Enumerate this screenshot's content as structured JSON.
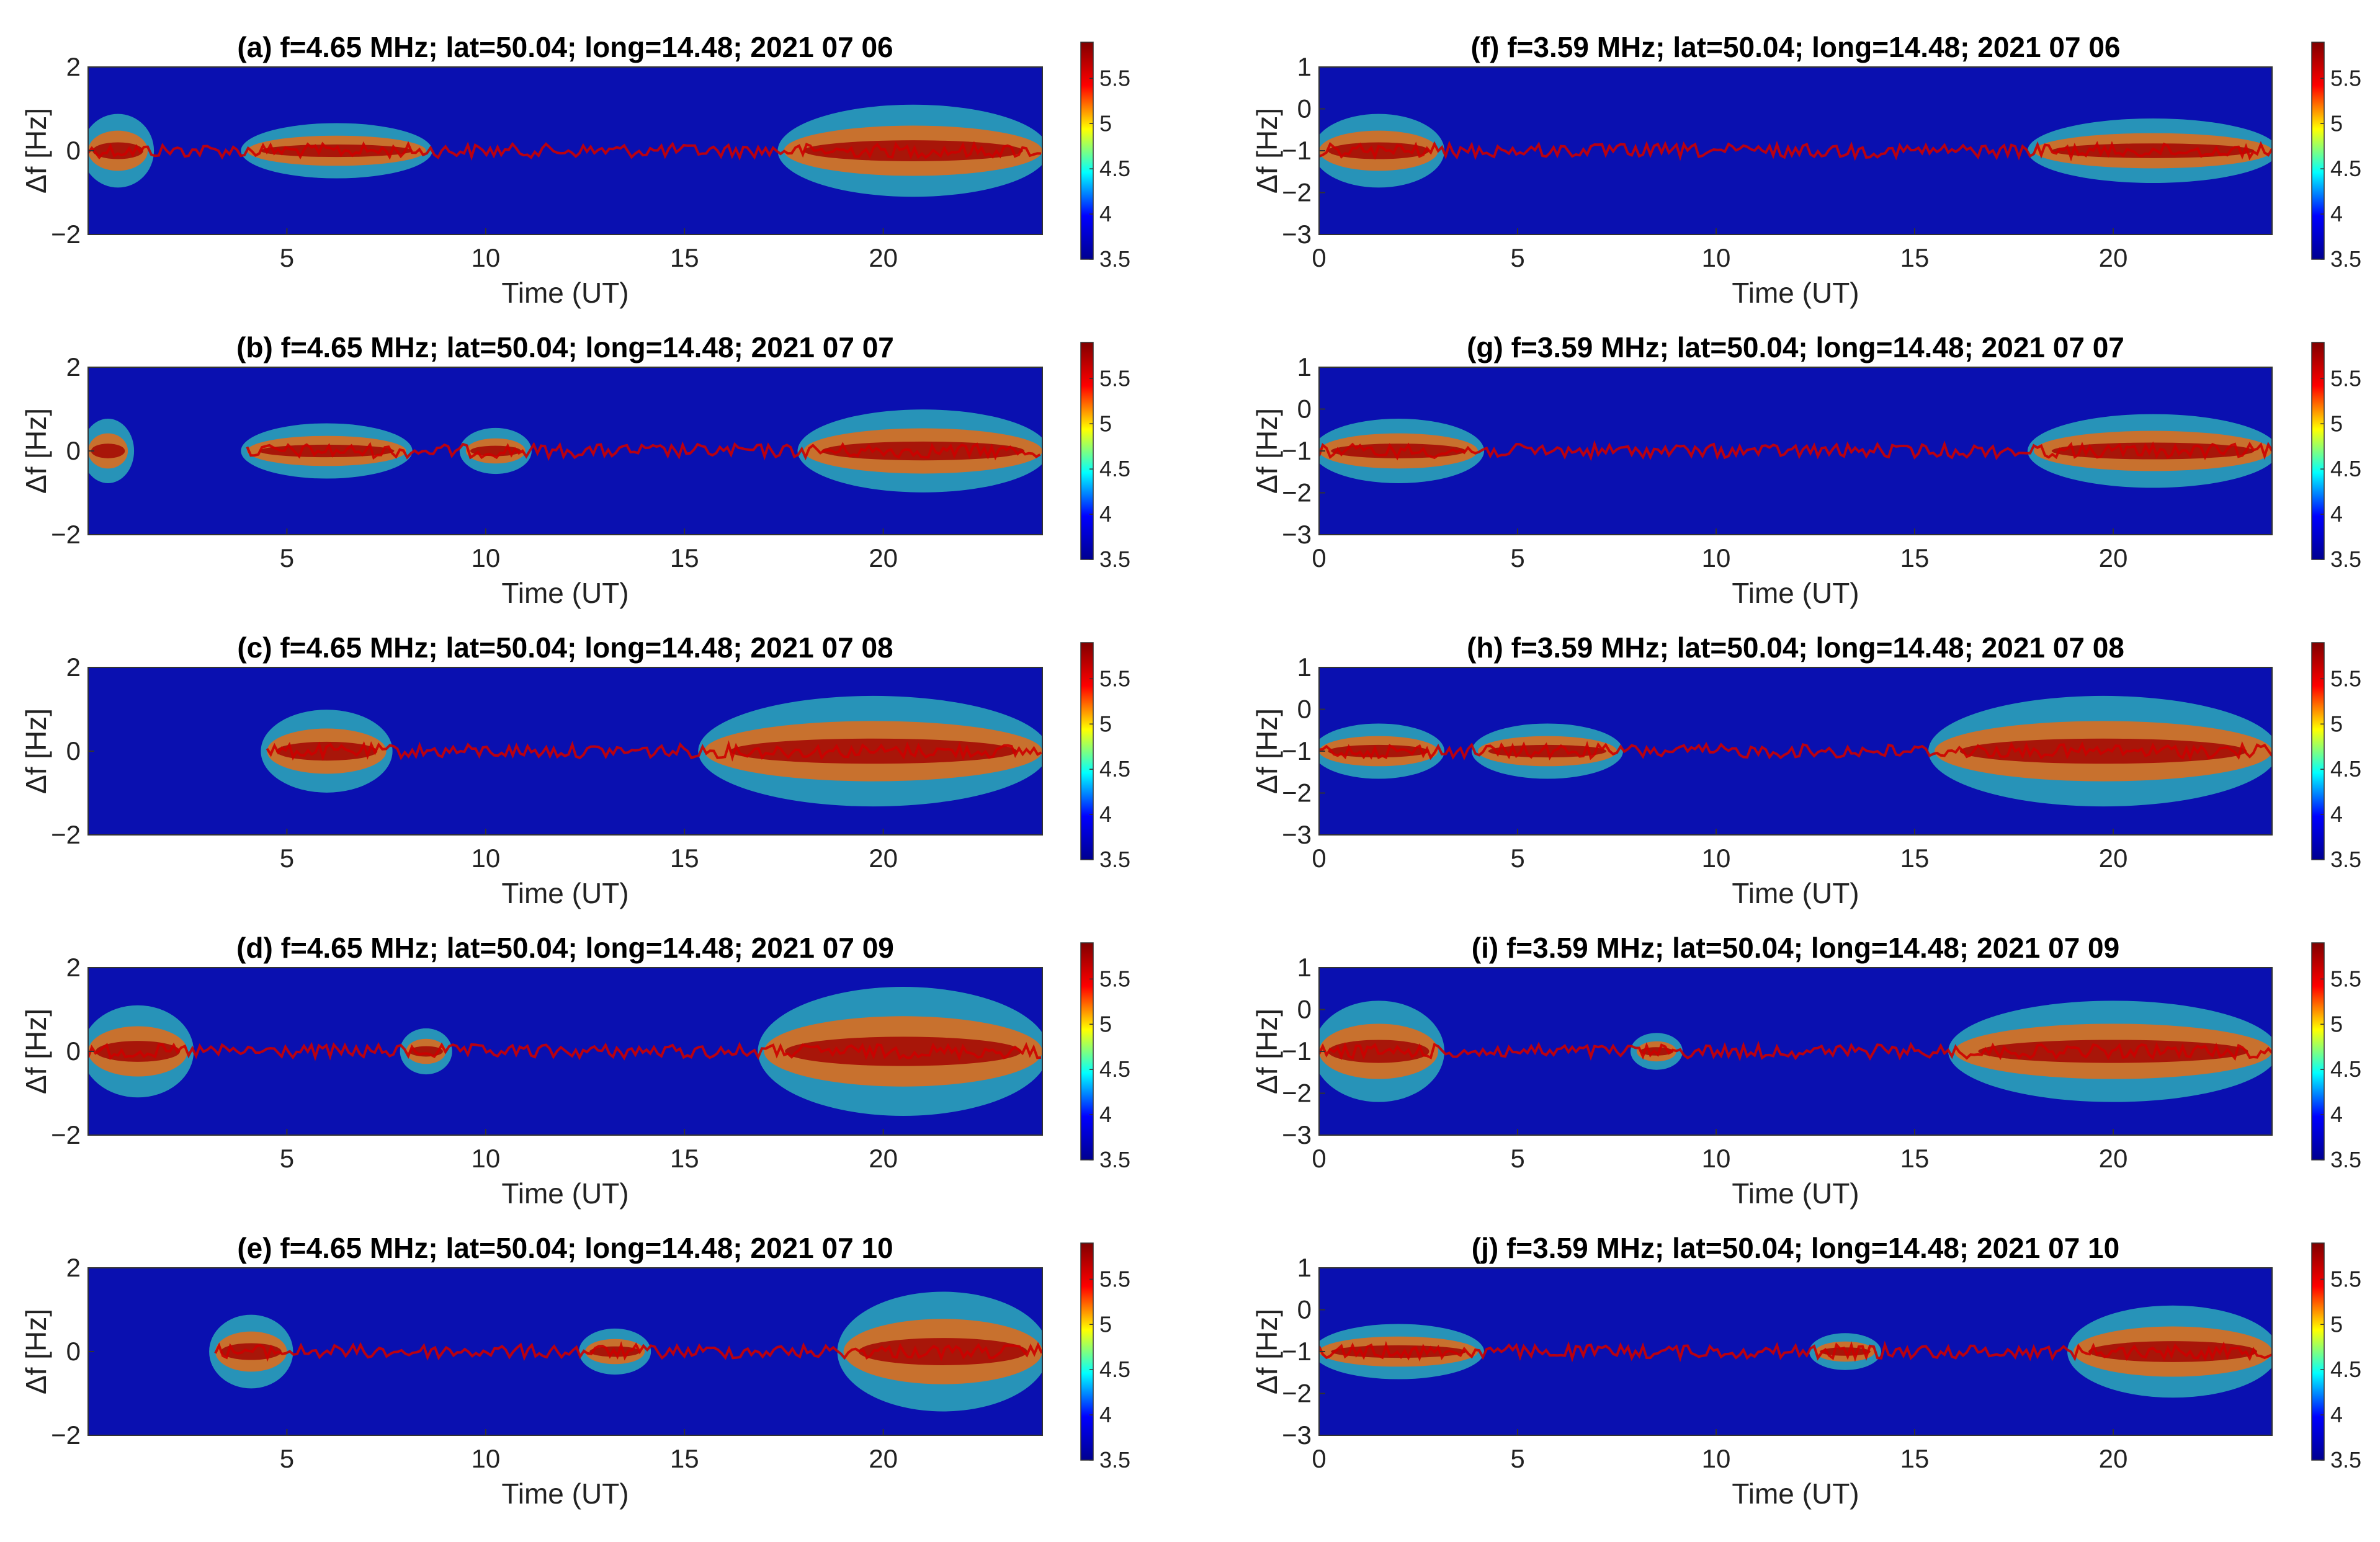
{
  "figure": {
    "colormap": [
      "#00008f",
      "#0000ff",
      "#00ffff",
      "#ffff00",
      "#ff0000",
      "#800000"
    ]
  },
  "chart_data": [
    {
      "type": "heatmap",
      "panel": "a",
      "title": "(a) f=4.65 MHz;  lat=50.04; long=14.48; 2021 07 06",
      "xlabel": "Time (UT)",
      "ylabel": "Δf [Hz]",
      "xlim": [
        0,
        24
      ],
      "ylim": [
        -2,
        2
      ],
      "xticks": [
        5,
        10,
        15,
        20
      ],
      "yticks": [
        -2,
        0,
        2
      ],
      "colorbar": {
        "range": [
          3.5,
          5.9
        ],
        "ticks": [
          3.5,
          4,
          4.5,
          5,
          5.5
        ]
      },
      "trace": {
        "start": 0,
        "center": 0,
        "activity": [
          [
            0,
            1.5,
            0.8
          ],
          [
            4,
            8.5,
            0.6
          ],
          [
            17.5,
            24,
            1.0
          ]
        ]
      }
    },
    {
      "type": "heatmap",
      "panel": "b",
      "title": "(b) f=4.65 MHz;  lat=50.04; long=14.48; 2021 07 07",
      "xlabel": "Time (UT)",
      "ylabel": "Δf [Hz]",
      "xlim": [
        0,
        24
      ],
      "ylim": [
        -2,
        2
      ],
      "xticks": [
        5,
        10,
        15,
        20
      ],
      "yticks": [
        -2,
        0,
        2
      ],
      "colorbar": {
        "range": [
          3.5,
          5.9
        ],
        "ticks": [
          3.5,
          4,
          4.5,
          5,
          5.5
        ]
      },
      "trace": {
        "start": 4,
        "center": 0,
        "activity": [
          [
            0,
            1,
            0.7
          ],
          [
            4,
            8,
            0.6
          ],
          [
            9.5,
            11,
            0.5
          ],
          [
            18,
            24,
            0.9
          ]
        ]
      }
    },
    {
      "type": "heatmap",
      "panel": "c",
      "title": "(c) f=4.65 MHz;  lat=50.04; long=14.48; 2021 07 08",
      "xlabel": "Time (UT)",
      "ylabel": "Δf [Hz]",
      "xlim": [
        0,
        24
      ],
      "ylim": [
        -2,
        2
      ],
      "xticks": [
        5,
        10,
        15,
        20
      ],
      "yticks": [
        -2,
        0,
        2
      ],
      "colorbar": {
        "range": [
          3.5,
          5.9
        ],
        "ticks": [
          3.5,
          4,
          4.5,
          5,
          5.5
        ]
      },
      "trace": {
        "start": 4.5,
        "center": 0,
        "activity": [
          [
            4.5,
            7.5,
            0.9
          ],
          [
            15.5,
            24,
            1.2
          ]
        ]
      }
    },
    {
      "type": "heatmap",
      "panel": "d",
      "title": "(d) f=4.65 MHz;  lat=50.04; long=14.48; 2021 07 09",
      "xlabel": "Time (UT)",
      "ylabel": "Δf [Hz]",
      "xlim": [
        0,
        24
      ],
      "ylim": [
        -2,
        2
      ],
      "xticks": [
        5,
        10,
        15,
        20
      ],
      "yticks": [
        -2,
        0,
        2
      ],
      "colorbar": {
        "range": [
          3.5,
          5.9
        ],
        "ticks": [
          3.5,
          4,
          4.5,
          5,
          5.5
        ]
      },
      "trace": {
        "start": 0,
        "center": 0,
        "activity": [
          [
            0,
            2.5,
            1.0
          ],
          [
            8,
            9,
            0.5
          ],
          [
            17,
            24,
            1.4
          ]
        ]
      }
    },
    {
      "type": "heatmap",
      "panel": "e",
      "title": "(e) f=4.65 MHz;  lat=50.04; long=14.48; 2021 07 10",
      "xlabel": "Time (UT)",
      "ylabel": "Δf [Hz]",
      "xlim": [
        0,
        24
      ],
      "ylim": [
        -2,
        2
      ],
      "xticks": [
        5,
        10,
        15,
        20
      ],
      "yticks": [
        -2,
        0,
        2
      ],
      "colorbar": {
        "range": [
          3.5,
          5.9
        ],
        "ticks": [
          3.5,
          4,
          4.5,
          5,
          5.5
        ]
      },
      "trace": {
        "start": 3.2,
        "center": 0,
        "activity": [
          [
            3.2,
            5,
            0.8
          ],
          [
            12.5,
            14,
            0.5
          ],
          [
            19,
            24,
            1.3
          ]
        ]
      }
    },
    {
      "type": "heatmap",
      "panel": "f",
      "title": "(f) f=3.59 MHz;  lat=50.04; long=14.48; 2021 07 06",
      "xlabel": "Time (UT)",
      "ylabel": "Δf [Hz]",
      "xlim": [
        0,
        24
      ],
      "ylim": [
        -3,
        1
      ],
      "xticks": [
        0,
        5,
        10,
        15,
        20
      ],
      "yticks": [
        -3,
        -2,
        -1,
        0,
        1
      ],
      "colorbar": {
        "range": [
          3.5,
          5.9
        ],
        "ticks": [
          3.5,
          4,
          4.5,
          5,
          5.5
        ]
      },
      "trace": {
        "start": 0,
        "center": -1,
        "activity": [
          [
            0,
            3,
            0.8
          ],
          [
            18,
            24,
            0.7
          ]
        ]
      }
    },
    {
      "type": "heatmap",
      "panel": "g",
      "title": "(g) f=3.59 MHz;  lat=50.04; long=14.48; 2021 07 07",
      "xlabel": "Time (UT)",
      "ylabel": "Δf [Hz]",
      "xlim": [
        0,
        24
      ],
      "ylim": [
        -3,
        1
      ],
      "xticks": [
        0,
        5,
        10,
        15,
        20
      ],
      "yticks": [
        -3,
        -2,
        -1,
        0,
        1
      ],
      "colorbar": {
        "range": [
          3.5,
          5.9
        ],
        "ticks": [
          3.5,
          4,
          4.5,
          5,
          5.5
        ]
      },
      "trace": {
        "start": 0,
        "center": -1,
        "activity": [
          [
            0,
            4,
            0.7
          ],
          [
            18,
            24,
            0.8
          ]
        ]
      }
    },
    {
      "type": "heatmap",
      "panel": "h",
      "title": "(h) f=3.59 MHz;  lat=50.04; long=14.48; 2021 07 08",
      "xlabel": "Time (UT)",
      "ylabel": "Δf [Hz]",
      "xlim": [
        0,
        24
      ],
      "ylim": [
        -3,
        1
      ],
      "xticks": [
        0,
        5,
        10,
        15,
        20
      ],
      "yticks": [
        -3,
        -2,
        -1,
        0,
        1
      ],
      "colorbar": {
        "range": [
          3.5,
          5.9
        ],
        "ticks": [
          3.5,
          4,
          4.5,
          5,
          5.5
        ]
      },
      "trace": {
        "start": 0,
        "center": -1,
        "activity": [
          [
            0,
            3,
            0.6
          ],
          [
            4,
            7.5,
            0.6
          ],
          [
            15.5,
            24,
            1.2
          ]
        ]
      }
    },
    {
      "type": "heatmap",
      "panel": "i",
      "title": "(i) f=3.59 MHz;  lat=50.04; long=14.48; 2021 07 09",
      "xlabel": "Time (UT)",
      "ylabel": "Δf [Hz]",
      "xlim": [
        0,
        24
      ],
      "ylim": [
        -3,
        1
      ],
      "xticks": [
        0,
        5,
        10,
        15,
        20
      ],
      "yticks": [
        -3,
        -2,
        -1,
        0,
        1
      ],
      "colorbar": {
        "range": [
          3.5,
          5.9
        ],
        "ticks": [
          3.5,
          4,
          4.5,
          5,
          5.5
        ]
      },
      "trace": {
        "start": 0,
        "center": -1,
        "activity": [
          [
            0,
            3,
            1.1
          ],
          [
            8,
            9,
            0.4
          ],
          [
            16,
            24,
            1.1
          ]
        ]
      }
    },
    {
      "type": "heatmap",
      "panel": "j",
      "title": "(j) f=3.59 MHz;  lat=50.04; long=14.48; 2021 07 10",
      "xlabel": "Time (UT)",
      "ylabel": "Δf [Hz]",
      "xlim": [
        0,
        24
      ],
      "ylim": [
        -3,
        1
      ],
      "xticks": [
        0,
        5,
        10,
        15,
        20
      ],
      "yticks": [
        -3,
        -2,
        -1,
        0,
        1
      ],
      "colorbar": {
        "range": [
          3.5,
          5.9
        ],
        "ticks": [
          3.5,
          4,
          4.5,
          5,
          5.5
        ]
      },
      "trace": {
        "start": 0,
        "center": -1,
        "activity": [
          [
            0,
            4,
            0.6
          ],
          [
            12.5,
            14,
            0.4
          ],
          [
            19,
            24,
            1.0
          ]
        ]
      }
    }
  ]
}
